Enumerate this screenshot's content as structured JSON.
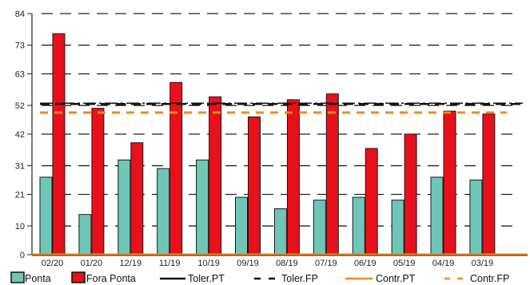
{
  "chart_data": {
    "type": "bar",
    "categories": [
      "02/20",
      "01/20",
      "12/19",
      "11/19",
      "10/19",
      "09/19",
      "08/19",
      "07/19",
      "06/19",
      "05/19",
      "04/19",
      "03/19"
    ],
    "series": [
      {
        "name": "Ponta",
        "color": "#6fc6b6",
        "values": [
          27,
          14,
          33,
          30,
          33,
          20,
          16,
          19,
          20,
          19,
          27,
          26
        ]
      },
      {
        "name": "Fora Ponta",
        "color": "#e8101a",
        "values": [
          77,
          51,
          39,
          60,
          55,
          48,
          54,
          56,
          37,
          42,
          50,
          49
        ]
      }
    ],
    "reference_lines": [
      {
        "name": "Toler.PT",
        "value": 52.5,
        "color": "#111111",
        "style": "dash-dot"
      },
      {
        "name": "Toler.FP",
        "value": 52.5,
        "color": "#111111",
        "style": "dashed"
      },
      {
        "name": "Contr.PT",
        "value": 0,
        "color": "#f08a1c",
        "style": "solid"
      },
      {
        "name": "Contr.FP",
        "value": 49.5,
        "color": "#f08a1c",
        "style": "dashed"
      }
    ],
    "y_ticks": [
      "0",
      "10",
      "21",
      "31",
      "42",
      "52",
      "63",
      "73",
      "84"
    ],
    "ylim": [
      0,
      84
    ],
    "grid": "horizontal dashed",
    "legend_position": "bottom"
  }
}
